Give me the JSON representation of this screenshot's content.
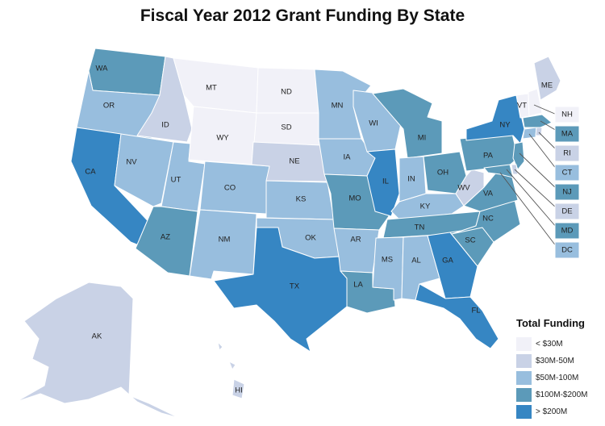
{
  "title": "Fiscal Year 2012 Grant Funding By State",
  "legend": {
    "title": "Total Funding",
    "items": [
      {
        "label": "< $30M",
        "color": "#f1f1f8"
      },
      {
        "label": "$30M-50M",
        "color": "#c9d2e6"
      },
      {
        "label": "$50M-100M",
        "color": "#98bede"
      },
      {
        "label": "$100M-$200M",
        "color": "#5c9ab9"
      },
      {
        "label": "> $200M",
        "color": "#3686c3"
      }
    ]
  },
  "states": [
    {
      "code": "WA",
      "tier": 3
    },
    {
      "code": "OR",
      "tier": 2
    },
    {
      "code": "CA",
      "tier": 4
    },
    {
      "code": "ID",
      "tier": 1
    },
    {
      "code": "NV",
      "tier": 2
    },
    {
      "code": "UT",
      "tier": 2
    },
    {
      "code": "AZ",
      "tier": 3
    },
    {
      "code": "MT",
      "tier": 0
    },
    {
      "code": "WY",
      "tier": 0
    },
    {
      "code": "CO",
      "tier": 2
    },
    {
      "code": "NM",
      "tier": 2
    },
    {
      "code": "ND",
      "tier": 0
    },
    {
      "code": "SD",
      "tier": 0
    },
    {
      "code": "NE",
      "tier": 1
    },
    {
      "code": "KS",
      "tier": 2
    },
    {
      "code": "OK",
      "tier": 2
    },
    {
      "code": "TX",
      "tier": 4
    },
    {
      "code": "MN",
      "tier": 2
    },
    {
      "code": "IA",
      "tier": 2
    },
    {
      "code": "MO",
      "tier": 3
    },
    {
      "code": "AR",
      "tier": 2
    },
    {
      "code": "LA",
      "tier": 3
    },
    {
      "code": "WI",
      "tier": 2
    },
    {
      "code": "IL",
      "tier": 4
    },
    {
      "code": "MI",
      "tier": 3
    },
    {
      "code": "IN",
      "tier": 2
    },
    {
      "code": "OH",
      "tier": 3
    },
    {
      "code": "KY",
      "tier": 2
    },
    {
      "code": "TN",
      "tier": 3
    },
    {
      "code": "MS",
      "tier": 2
    },
    {
      "code": "AL",
      "tier": 2
    },
    {
      "code": "GA",
      "tier": 4
    },
    {
      "code": "FL",
      "tier": 4
    },
    {
      "code": "SC",
      "tier": 3
    },
    {
      "code": "NC",
      "tier": 3
    },
    {
      "code": "VA",
      "tier": 3
    },
    {
      "code": "WV",
      "tier": 1
    },
    {
      "code": "PA",
      "tier": 3
    },
    {
      "code": "NY",
      "tier": 4
    },
    {
      "code": "ME",
      "tier": 1
    },
    {
      "code": "VT",
      "tier": 0
    },
    {
      "code": "AK",
      "tier": 1
    },
    {
      "code": "HI",
      "tier": 1
    }
  ],
  "callouts": [
    {
      "code": "NH",
      "tier": 0
    },
    {
      "code": "MA",
      "tier": 3
    },
    {
      "code": "RI",
      "tier": 1
    },
    {
      "code": "CT",
      "tier": 2
    },
    {
      "code": "NJ",
      "tier": 3
    },
    {
      "code": "DE",
      "tier": 1
    },
    {
      "code": "MD",
      "tier": 3
    },
    {
      "code": "DC",
      "tier": 2
    }
  ]
}
